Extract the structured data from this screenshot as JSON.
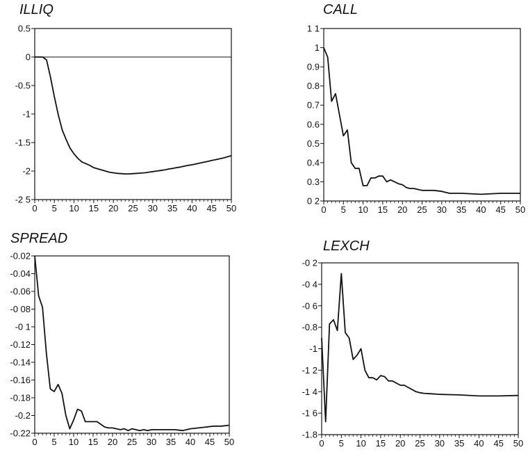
{
  "chart_data": [
    {
      "type": "line",
      "title": "ILLIQ",
      "xlabel": "",
      "ylabel": "",
      "xlim": [
        0,
        50
      ],
      "ylim": [
        -2.5,
        0.5
      ],
      "grid": false,
      "zero_line": true,
      "x_ticks": [
        0,
        5,
        10,
        15,
        20,
        25,
        30,
        35,
        40,
        45,
        50
      ],
      "y_ticks": [
        0.5,
        0,
        -0.5,
        -1,
        -1.5,
        -2,
        -2.5
      ],
      "y_tick_labels": [
        "0.5",
        "0",
        "-0.5",
        "-1",
        "-1.5",
        "-2",
        "-2 5"
      ],
      "series": [
        {
          "x": [
            0,
            1,
            2,
            3,
            4,
            5,
            6,
            7,
            8,
            9,
            10,
            11,
            12,
            13,
            14,
            15,
            16,
            17,
            18,
            19,
            20,
            21,
            22,
            23,
            24,
            25,
            26,
            27,
            28,
            29,
            30,
            31,
            32,
            33,
            34,
            35,
            36,
            37,
            38,
            39,
            40,
            41,
            42,
            43,
            44,
            45,
            46,
            47,
            48,
            49,
            50
          ],
          "values": [
            0,
            0,
            0,
            -0.05,
            -0.35,
            -0.7,
            -1.02,
            -1.28,
            -1.45,
            -1.6,
            -1.7,
            -1.78,
            -1.84,
            -1.87,
            -1.9,
            -1.94,
            -1.96,
            -1.98,
            -2.0,
            -2.02,
            -2.03,
            -2.04,
            -2.045,
            -2.05,
            -2.05,
            -2.045,
            -2.04,
            -2.035,
            -2.03,
            -2.02,
            -2.01,
            -2.0,
            -1.99,
            -1.98,
            -1.965,
            -1.955,
            -1.94,
            -1.93,
            -1.915,
            -1.9,
            -1.89,
            -1.875,
            -1.86,
            -1.845,
            -1.83,
            -1.815,
            -1.8,
            -1.785,
            -1.77,
            -1.75,
            -1.73
          ]
        }
      ]
    },
    {
      "type": "line",
      "title": "CALL",
      "xlabel": "",
      "ylabel": "",
      "xlim": [
        0,
        50
      ],
      "ylim": [
        0.2,
        1.1
      ],
      "grid": false,
      "zero_line": false,
      "x_ticks": [
        0,
        5,
        10,
        15,
        20,
        25,
        30,
        35,
        40,
        45,
        50
      ],
      "y_ticks": [
        1.1,
        1,
        0.9,
        0.8,
        0.7,
        0.6,
        0.5,
        0.4,
        0.3,
        0.2
      ],
      "y_tick_labels": [
        "1 1",
        "1",
        "0.9",
        "0.8",
        "0.7",
        "0.6",
        "0.5",
        "0.4",
        "0.3",
        "0 2"
      ],
      "series": [
        {
          "x": [
            0,
            1,
            2,
            3,
            4,
            5,
            6,
            7,
            8,
            9,
            10,
            11,
            12,
            13,
            14,
            15,
            16,
            17,
            18,
            19,
            20,
            21,
            22,
            23,
            24,
            25,
            26,
            28,
            30,
            32,
            35,
            40,
            45,
            50
          ],
          "values": [
            1.0,
            0.95,
            0.72,
            0.76,
            0.65,
            0.54,
            0.57,
            0.4,
            0.37,
            0.37,
            0.28,
            0.28,
            0.32,
            0.32,
            0.33,
            0.33,
            0.3,
            0.31,
            0.3,
            0.29,
            0.285,
            0.27,
            0.265,
            0.265,
            0.26,
            0.255,
            0.255,
            0.255,
            0.25,
            0.24,
            0.24,
            0.235,
            0.24,
            0.24
          ]
        }
      ]
    },
    {
      "type": "line",
      "title": "SPREAD",
      "xlabel": "",
      "ylabel": "",
      "xlim": [
        0,
        50
      ],
      "ylim": [
        -0.22,
        -0.02
      ],
      "grid": false,
      "zero_line": false,
      "x_ticks": [
        0,
        5,
        10,
        15,
        20,
        25,
        30,
        35,
        40,
        45,
        50
      ],
      "y_ticks": [
        -0.02,
        -0.04,
        -0.06,
        -0.08,
        -0.1,
        -0.12,
        -0.14,
        -0.16,
        -0.18,
        -0.2,
        -0.22
      ],
      "y_tick_labels": [
        "-0.02",
        "-0.04",
        "-0.06",
        "-0 08",
        "-0 1",
        "-0.12",
        "-0.14",
        "-0.16",
        "-0.18",
        "-0.2",
        "-0.22"
      ],
      "series": [
        {
          "x": [
            0,
            1,
            2,
            3,
            4,
            5,
            6,
            7,
            8,
            9,
            10,
            11,
            12,
            13,
            14,
            15,
            16,
            17,
            18,
            19,
            20,
            21,
            22,
            23,
            24,
            25,
            26,
            27,
            28,
            29,
            30,
            32,
            34,
            36,
            38,
            40,
            42,
            44,
            46,
            48,
            50
          ],
          "values": [
            -0.02,
            -0.065,
            -0.078,
            -0.13,
            -0.17,
            -0.173,
            -0.165,
            -0.175,
            -0.2,
            -0.215,
            -0.205,
            -0.193,
            -0.195,
            -0.207,
            -0.207,
            -0.207,
            -0.207,
            -0.21,
            -0.213,
            -0.214,
            -0.214,
            -0.215,
            -0.216,
            -0.215,
            -0.217,
            -0.215,
            -0.216,
            -0.217,
            -0.216,
            -0.217,
            -0.216,
            -0.216,
            -0.216,
            -0.216,
            -0.217,
            -0.215,
            -0.214,
            -0.213,
            -0.212,
            -0.212,
            -0.211
          ]
        }
      ]
    },
    {
      "type": "line",
      "title": "LEXCH",
      "xlabel": "",
      "ylabel": "",
      "xlim": [
        0,
        50
      ],
      "ylim": [
        -1.8,
        -0.2
      ],
      "grid": false,
      "zero_line": false,
      "x_ticks": [
        0,
        5,
        10,
        15,
        20,
        25,
        30,
        35,
        40,
        45,
        50
      ],
      "y_ticks": [
        -0.2,
        -0.4,
        -0.6,
        -0.8,
        -1,
        -1.2,
        -1.4,
        -1.6,
        -1.8
      ],
      "y_tick_labels": [
        "-0 2",
        "-0 4",
        "-0 6",
        "-0.8",
        "-1",
        "-1 2",
        "-1 4",
        "-1 6",
        "-1.8"
      ],
      "series": [
        {
          "x": [
            0,
            1,
            2,
            3,
            4,
            5,
            6,
            7,
            8,
            9,
            10,
            11,
            12,
            13,
            14,
            15,
            16,
            17,
            18,
            19,
            20,
            21,
            22,
            23,
            24,
            25,
            26,
            28,
            30,
            35,
            40,
            45,
            50
          ],
          "values": [
            -0.9,
            -1.68,
            -0.77,
            -0.73,
            -0.83,
            -0.3,
            -0.85,
            -0.9,
            -1.1,
            -1.06,
            -1.0,
            -1.2,
            -1.27,
            -1.27,
            -1.29,
            -1.25,
            -1.26,
            -1.3,
            -1.3,
            -1.32,
            -1.34,
            -1.34,
            -1.36,
            -1.38,
            -1.4,
            -1.41,
            -1.415,
            -1.42,
            -1.425,
            -1.43,
            -1.44,
            -1.44,
            -1.435
          ]
        }
      ]
    }
  ]
}
